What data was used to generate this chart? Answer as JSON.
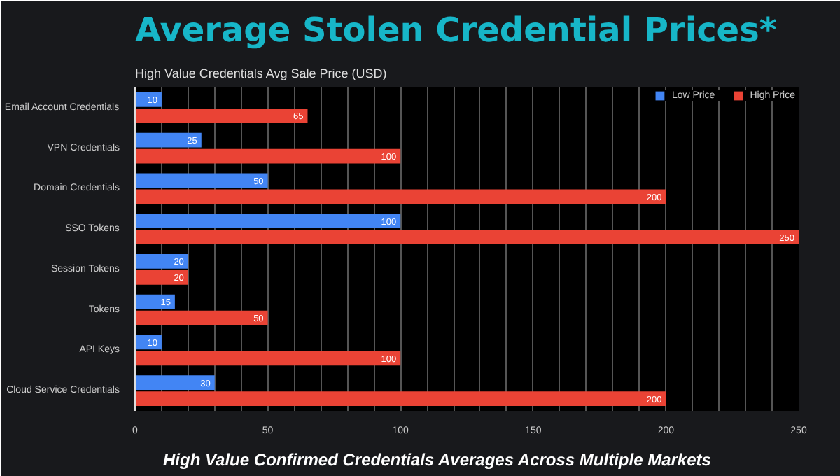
{
  "chart_data": {
    "type": "bar",
    "orientation": "horizontal",
    "title": "Average Stolen Credential Prices*",
    "subtitle": "High Value Credentials Avg Sale Price (USD)",
    "annotations": [
      "High Value Confirmed Credentials Averages Across Multiple Markets"
    ],
    "categories": [
      "Email Account Credentials",
      "VPN Credentials",
      "Domain Credentials",
      "SSO Tokens",
      "Session Tokens",
      "Tokens",
      "API Keys",
      "Cloud Service Credentials"
    ],
    "series": [
      {
        "name": "Low Price",
        "color": "#4285f4",
        "values": [
          10,
          25,
          50,
          100,
          20,
          15,
          10,
          30
        ]
      },
      {
        "name": "High Price",
        "color": "#ea4335",
        "values": [
          65,
          100,
          200,
          250,
          20,
          50,
          100,
          200
        ]
      }
    ],
    "xlim": [
      0,
      250
    ],
    "xticks": [
      0,
      {
        "value": 10,
        "label": null
      },
      {
        "value": 20,
        "label": null
      },
      {
        "value": 30,
        "label": null
      },
      {
        "value": 40,
        "label": null
      },
      50,
      {
        "value": 60,
        "label": null
      },
      {
        "value": 70,
        "label": null
      },
      {
        "value": 80,
        "label": null
      },
      {
        "value": 90,
        "label": null
      },
      100,
      {
        "value": 110,
        "label": null
      },
      {
        "value": 120,
        "label": null
      },
      {
        "value": 130,
        "label": null
      },
      {
        "value": 140,
        "label": null
      },
      150,
      {
        "value": 160,
        "label": null
      },
      {
        "value": 170,
        "label": null
      },
      {
        "value": 180,
        "label": null
      },
      {
        "value": 190,
        "label": null
      },
      200,
      {
        "value": 210,
        "label": null
      },
      {
        "value": 220,
        "label": null
      },
      {
        "value": 230,
        "label": null
      },
      {
        "value": 240,
        "label": null
      },
      250
    ],
    "grid": "x",
    "legend": "top",
    "data_labels": true
  }
}
